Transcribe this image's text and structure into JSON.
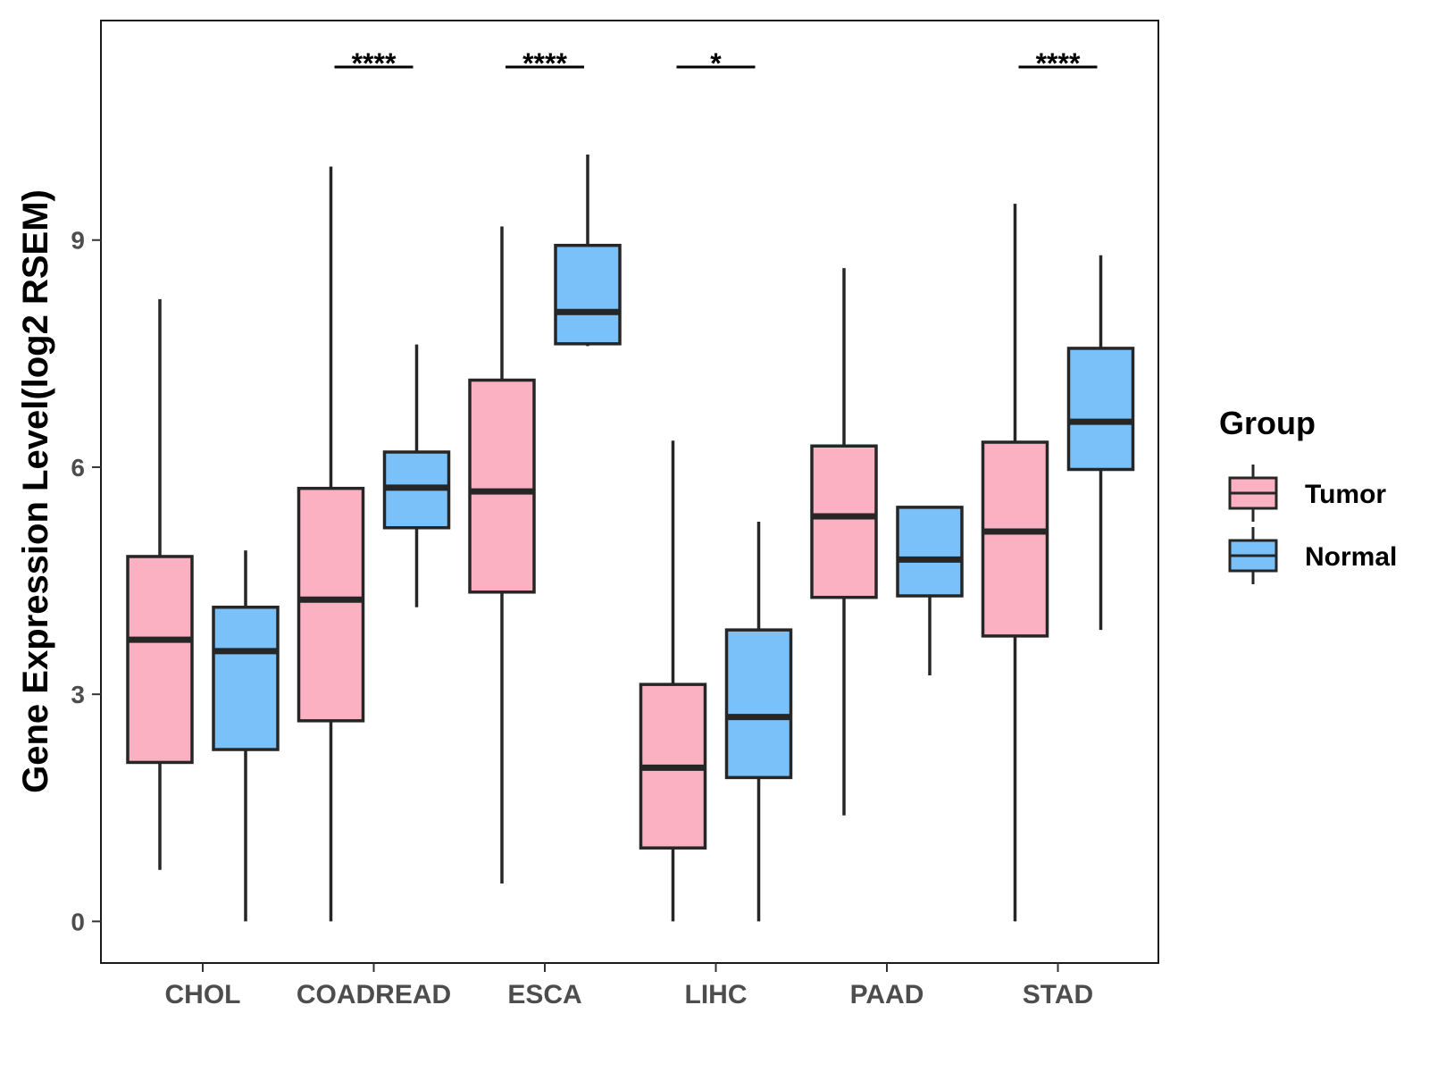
{
  "chart_data": {
    "type": "boxplot",
    "title": "",
    "xlabel": "",
    "ylabel": "Gene Expression Level(log2 RSEM)",
    "ylim": [
      -0.55,
      11.9
    ],
    "yticks": [
      0,
      3,
      6,
      9
    ],
    "grid": false,
    "legend_position": "right",
    "legend_title": "Group",
    "categories": [
      "CHOL",
      "COADREAD",
      "ESCA",
      "LIHC",
      "PAAD",
      "STAD"
    ],
    "series": [
      {
        "name": "Tumor",
        "color": "#fbb1c1",
        "boxes": [
          {
            "min": 0.68,
            "q1": 2.1,
            "median": 3.72,
            "q3": 4.82,
            "max": 8.22
          },
          {
            "min": 0.0,
            "q1": 2.65,
            "median": 4.25,
            "q3": 5.72,
            "max": 9.97
          },
          {
            "min": 0.5,
            "q1": 4.35,
            "median": 5.68,
            "q3": 7.15,
            "max": 9.18
          },
          {
            "min": 0.0,
            "q1": 0.97,
            "median": 2.03,
            "q3": 3.13,
            "max": 6.35
          },
          {
            "min": 1.4,
            "q1": 4.28,
            "median": 5.35,
            "q3": 6.28,
            "max": 8.63
          },
          {
            "min": 0.0,
            "q1": 3.77,
            "median": 5.15,
            "q3": 6.33,
            "max": 9.48
          }
        ]
      },
      {
        "name": "Normal",
        "color": "#79c1f8",
        "boxes": [
          {
            "min": 0.0,
            "q1": 2.27,
            "median": 3.57,
            "q3": 4.15,
            "max": 4.9
          },
          {
            "min": 4.15,
            "q1": 5.2,
            "median": 5.73,
            "q3": 6.2,
            "max": 7.62
          },
          {
            "min": 7.6,
            "q1": 7.63,
            "median": 8.05,
            "q3": 8.93,
            "max": 10.13
          },
          {
            "min": 0.0,
            "q1": 1.9,
            "median": 2.7,
            "q3": 3.85,
            "max": 5.28
          },
          {
            "min": 3.25,
            "q1": 4.3,
            "median": 4.78,
            "q3": 5.47,
            "max": 5.47
          },
          {
            "min": 3.85,
            "q1": 5.97,
            "median": 6.6,
            "q3": 7.57,
            "max": 8.8
          }
        ]
      }
    ],
    "significance": [
      {
        "category": "COADREAD",
        "label": "****"
      },
      {
        "category": "ESCA",
        "label": "****"
      },
      {
        "category": "LIHC",
        "label": "*"
      },
      {
        "category": "STAD",
        "label": "****"
      }
    ]
  }
}
